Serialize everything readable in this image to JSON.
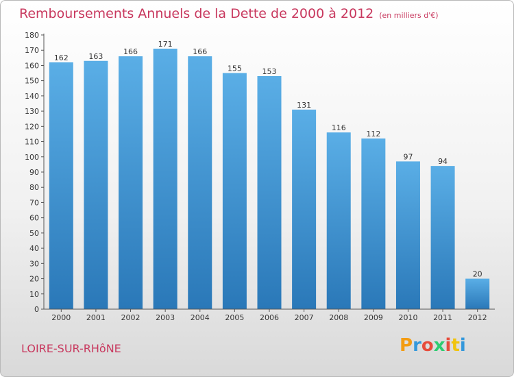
{
  "page": {
    "title": "Remboursements Annuels de la Dette de 2000 à 2012",
    "subtitle": "(en milliers d'€)",
    "commune": "LOIRE-SUR-RHôNE",
    "logo_letters": [
      "P",
      "r",
      "o",
      "x",
      "i",
      "t",
      "i"
    ],
    "logo_colors": [
      "#f39c12",
      "#3498db",
      "#e74c3c",
      "#2ecc71",
      "#e74c3c",
      "#f1c40f",
      "#3498db"
    ]
  },
  "colors": {
    "title": "#c8385e",
    "bar_top": "#5aaee6",
    "bar_bottom": "#2a78b8"
  },
  "chart_data": {
    "type": "bar",
    "title": "Remboursements Annuels de la Dette de 2000 à 2012",
    "subtitle": "(en milliers d'€)",
    "categories": [
      "2000",
      "2001",
      "2002",
      "2003",
      "2004",
      "2005",
      "2006",
      "2007",
      "2008",
      "2009",
      "2010",
      "2011",
      "2012"
    ],
    "values": [
      162,
      163,
      166,
      171,
      166,
      155,
      153,
      131,
      116,
      112,
      97,
      94,
      20
    ],
    "ylim": [
      0,
      180
    ],
    "ytick_step": 10,
    "grid": false,
    "legend": "none"
  }
}
